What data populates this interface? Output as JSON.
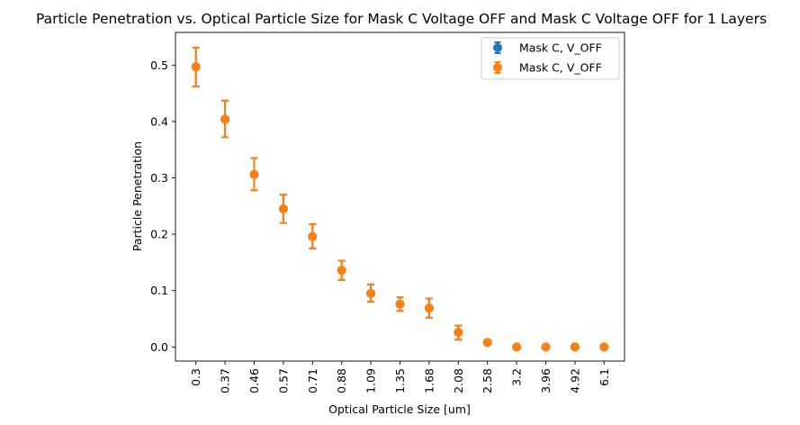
{
  "chart_data": {
    "type": "scatter",
    "title": "Particle Penetration vs. Optical Particle Size for Mask C Voltage OFF and Mask C Voltage OFF for 1 Layers",
    "xlabel": "Optical Particle Size [um]",
    "ylabel": "Particle Penetration",
    "categories": [
      "0.3",
      "0.37",
      "0.46",
      "0.57",
      "0.71",
      "0.88",
      "1.09",
      "1.35",
      "1.68",
      "2.08",
      "2.58",
      "3.2",
      "3.96",
      "4.92",
      "6.1"
    ],
    "ylim": [
      -0.025,
      0.558
    ],
    "yticks": [
      "0.0",
      "0.1",
      "0.2",
      "0.3",
      "0.4",
      "0.5"
    ],
    "yticks_values": [
      0.0,
      0.1,
      0.2,
      0.3,
      0.4,
      0.5
    ],
    "legend_position": "upper right",
    "grid": false,
    "series": [
      {
        "name": "Mask C, V_OFF",
        "color": "#1f77b4",
        "values": [
          0.497,
          0.404,
          0.306,
          0.245,
          0.196,
          0.136,
          0.095,
          0.076,
          0.069,
          0.026,
          0.008,
          0.0,
          0.0,
          0.0,
          0.0
        ],
        "err_low": [
          0.462,
          0.372,
          0.278,
          0.22,
          0.175,
          0.119,
          0.08,
          0.064,
          0.052,
          0.013,
          0.004,
          0.0,
          0.0,
          0.0,
          0.0
        ],
        "err_high": [
          0.531,
          0.437,
          0.335,
          0.27,
          0.218,
          0.153,
          0.111,
          0.088,
          0.086,
          0.038,
          0.012,
          0.0,
          0.0,
          0.0,
          0.0
        ]
      },
      {
        "name": "Mask C, V_OFF",
        "color": "#ff7f0e",
        "values": [
          0.497,
          0.404,
          0.306,
          0.245,
          0.196,
          0.136,
          0.095,
          0.076,
          0.069,
          0.026,
          0.008,
          0.0,
          0.0,
          0.0,
          0.0
        ],
        "err_low": [
          0.462,
          0.372,
          0.278,
          0.22,
          0.175,
          0.119,
          0.08,
          0.064,
          0.052,
          0.013,
          0.004,
          0.0,
          0.0,
          0.0,
          0.0
        ],
        "err_high": [
          0.531,
          0.437,
          0.335,
          0.27,
          0.218,
          0.153,
          0.111,
          0.088,
          0.086,
          0.038,
          0.012,
          0.0,
          0.0,
          0.0,
          0.0
        ]
      }
    ]
  }
}
